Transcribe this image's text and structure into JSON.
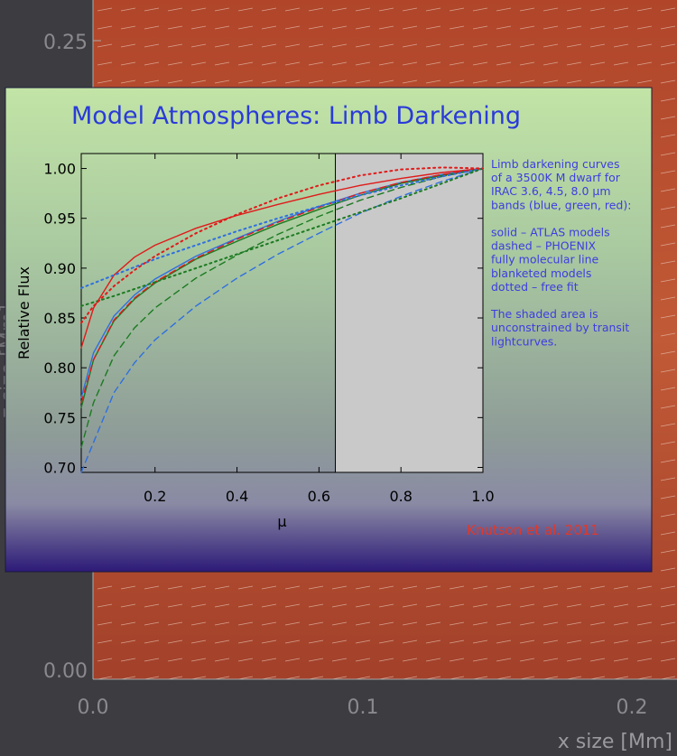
{
  "background": {
    "y_ticks": [
      "0.25",
      "0.00"
    ],
    "x_ticks": [
      "0.0",
      "0.1",
      "0.2"
    ],
    "x_label": "x size [Mm]",
    "y_label": "z size [Mm]"
  },
  "slide": {
    "title": "Model Atmospheres: Limb Darkening",
    "notes": [
      "Limb darkening curves",
      "of a 3500K M dwarf for",
      "IRAC 3.6, 4.5, 8.0 µm",
      "bands (blue, green, red):",
      "",
      "solid – ATLAS models",
      "dashed – PHOENIX",
      "   fully molecular line",
      "   blanketed models",
      "dotted – free fit",
      "",
      "The shaded area is",
      "unconstrained by transit",
      "lightcurves."
    ],
    "credit": "Knutson et al. 2011"
  },
  "colors": {
    "blue": "#2f6fe0",
    "green": "#1c7a22",
    "red": "#e01a1a",
    "shade": "#c9c9c9"
  },
  "chart_data": {
    "type": "line",
    "title": "",
    "xlabel": "μ",
    "ylabel": "Relative Flux",
    "xlim": [
      0.02,
      1.0
    ],
    "ylim": [
      0.695,
      1.015
    ],
    "x_ticks": [
      0.2,
      0.4,
      0.6,
      0.8,
      1.0
    ],
    "x_tick_labels": [
      "0.2",
      "0.4",
      "0.6",
      "0.8",
      "1.0"
    ],
    "y_ticks": [
      0.7,
      0.75,
      0.8,
      0.85,
      0.9,
      0.95,
      1.0
    ],
    "y_tick_labels": [
      "0.70",
      "0.75",
      "0.80",
      "0.85",
      "0.90",
      "0.95",
      "1.00"
    ],
    "shaded_region": {
      "x_start": 0.0,
      "x_end": 0.64
    },
    "series": [
      {
        "band": "3.6 µm",
        "color": "blue",
        "style": "solid",
        "x": [
          0.02,
          0.05,
          0.1,
          0.15,
          0.2,
          0.3,
          0.4,
          0.5,
          0.6,
          0.7,
          0.8,
          0.9,
          1.0
        ],
        "y": [
          0.77,
          0.815,
          0.852,
          0.873,
          0.889,
          0.912,
          0.93,
          0.947,
          0.962,
          0.975,
          0.986,
          0.994,
          1.0
        ]
      },
      {
        "band": "4.5 µm",
        "color": "green",
        "style": "solid",
        "x": [
          0.02,
          0.05,
          0.1,
          0.15,
          0.2,
          0.3,
          0.4,
          0.5,
          0.6,
          0.7,
          0.8,
          0.9,
          1.0
        ],
        "y": [
          0.76,
          0.808,
          0.847,
          0.869,
          0.885,
          0.909,
          0.927,
          0.944,
          0.959,
          0.973,
          0.985,
          0.993,
          1.0
        ]
      },
      {
        "band": "8.0 µm",
        "color": "red",
        "style": "solid",
        "x": [
          0.02,
          0.05,
          0.1,
          0.15,
          0.2,
          0.3,
          0.4,
          0.5,
          0.6,
          0.7,
          0.8,
          0.9,
          1.0
        ],
        "y": [
          0.82,
          0.86,
          0.893,
          0.911,
          0.923,
          0.94,
          0.953,
          0.964,
          0.974,
          0.983,
          0.99,
          0.996,
          1.0
        ]
      },
      {
        "band": "3.6 µm",
        "color": "blue",
        "style": "dashed",
        "x": [
          0.02,
          0.05,
          0.1,
          0.15,
          0.2,
          0.3,
          0.4,
          0.5,
          0.6,
          0.7,
          0.8,
          0.9,
          1.0
        ],
        "y": [
          0.695,
          0.725,
          0.775,
          0.805,
          0.828,
          0.862,
          0.89,
          0.914,
          0.935,
          0.955,
          0.972,
          0.987,
          1.0
        ]
      },
      {
        "band": "4.5 µm",
        "color": "green",
        "style": "dashed",
        "x": [
          0.02,
          0.05,
          0.1,
          0.15,
          0.2,
          0.3,
          0.4,
          0.5,
          0.6,
          0.7,
          0.8,
          0.9,
          1.0
        ],
        "y": [
          0.72,
          0.765,
          0.812,
          0.84,
          0.86,
          0.89,
          0.913,
          0.934,
          0.952,
          0.968,
          0.981,
          0.992,
          1.0
        ]
      },
      {
        "band": "8.0 µm",
        "color": "red",
        "style": "dashed",
        "x": [
          0.02,
          0.05,
          0.1,
          0.15,
          0.2,
          0.3,
          0.4,
          0.5,
          0.6,
          0.7,
          0.8,
          0.9,
          1.0
        ],
        "y": [
          0.765,
          0.808,
          0.848,
          0.87,
          0.886,
          0.91,
          0.929,
          0.946,
          0.961,
          0.975,
          0.986,
          0.994,
          1.0
        ]
      },
      {
        "band": "3.6 µm",
        "color": "blue",
        "style": "dotted",
        "x": [
          0.02,
          0.1,
          0.2,
          0.3,
          0.4,
          0.5,
          0.6,
          0.7,
          0.8,
          0.9,
          1.0
        ],
        "y": [
          0.88,
          0.893,
          0.909,
          0.923,
          0.937,
          0.95,
          0.962,
          0.973,
          0.983,
          0.992,
          1.0
        ]
      },
      {
        "band": "4.5 µm",
        "color": "green",
        "style": "dotted",
        "x": [
          0.02,
          0.1,
          0.2,
          0.3,
          0.4,
          0.5,
          0.6,
          0.7,
          0.8,
          0.9,
          1.0
        ],
        "y": [
          0.862,
          0.872,
          0.886,
          0.9,
          0.914,
          0.928,
          0.942,
          0.956,
          0.97,
          0.985,
          1.0
        ]
      },
      {
        "band": "8.0 µm",
        "color": "red",
        "style": "dotted",
        "x": [
          0.02,
          0.05,
          0.1,
          0.15,
          0.2,
          0.3,
          0.4,
          0.5,
          0.6,
          0.7,
          0.8,
          0.9,
          1.0
        ],
        "y": [
          0.845,
          0.862,
          0.882,
          0.898,
          0.912,
          0.935,
          0.954,
          0.97,
          0.983,
          0.993,
          0.999,
          1.001,
          1.0
        ]
      }
    ]
  }
}
